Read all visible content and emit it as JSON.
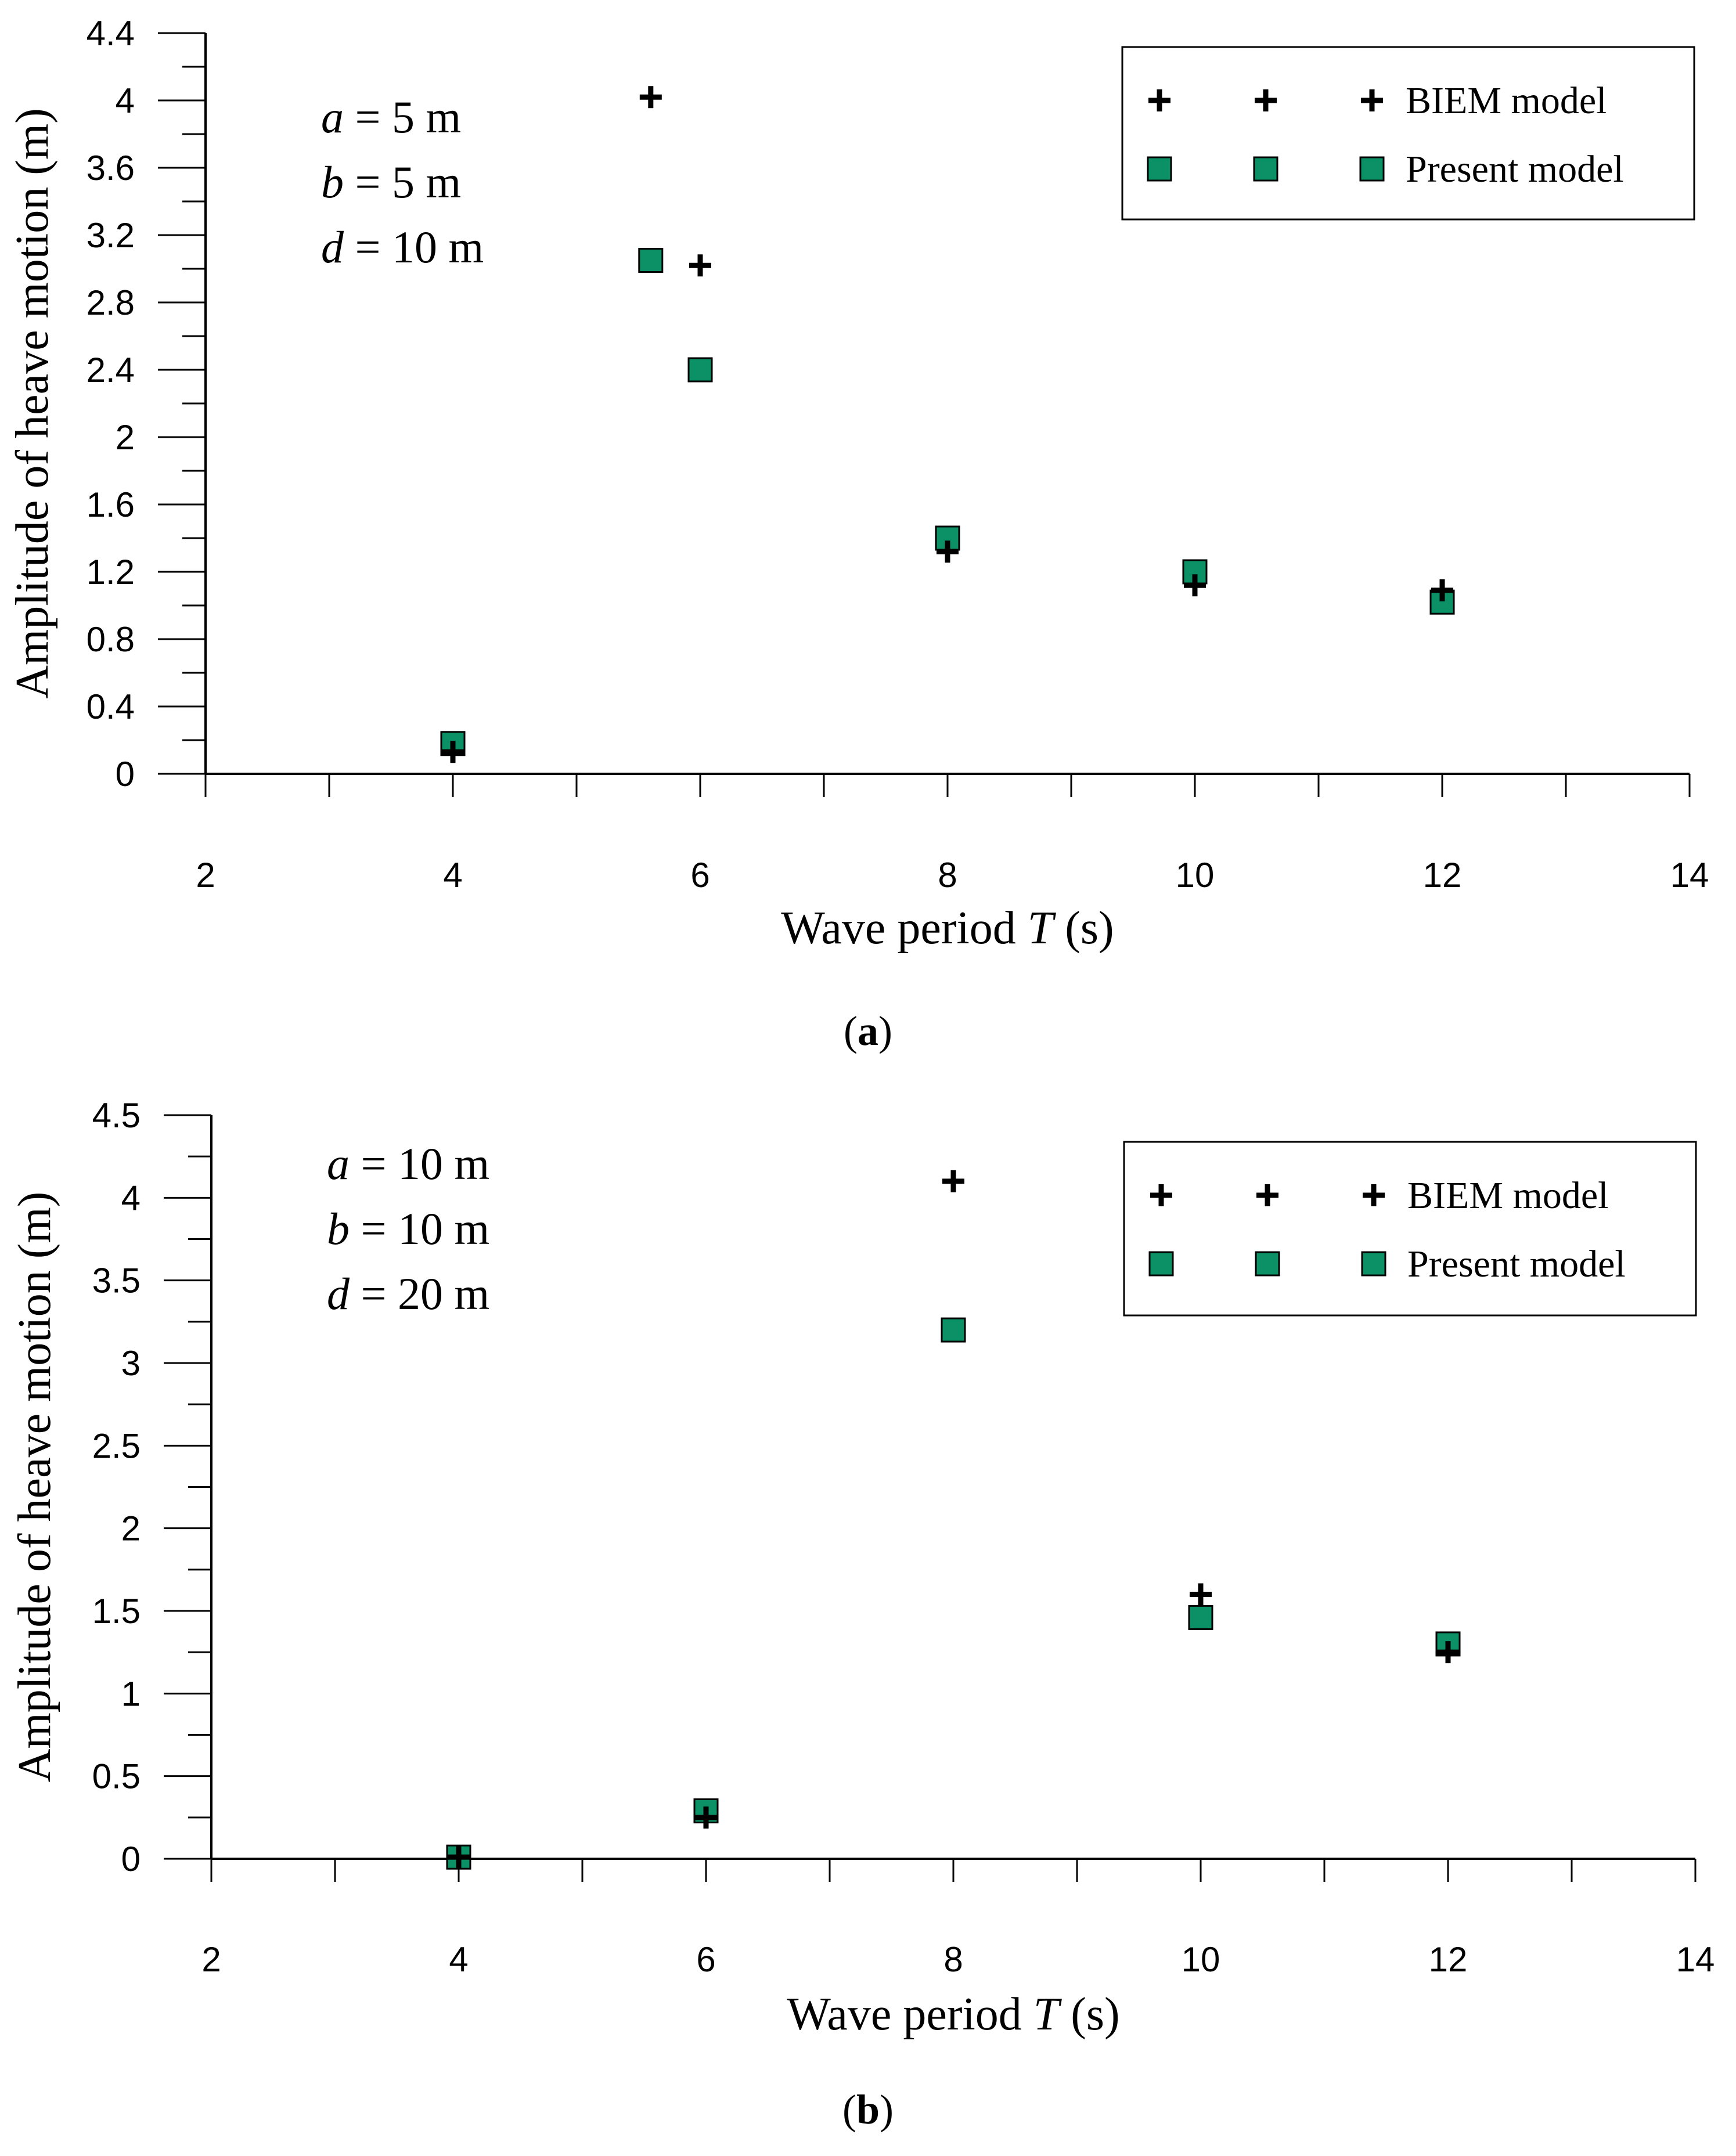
{
  "chart_data": [
    {
      "type": "scatter",
      "caption": "a",
      "xlabel": "Wave period",
      "xlabel_var": "T",
      "xlabel_unit": "(s)",
      "ylabel": "Amplitude of heave motion (m)",
      "xlim": [
        2,
        14
      ],
      "ylim": [
        0,
        4.4
      ],
      "x_ticks": [
        2,
        4,
        6,
        8,
        10,
        12,
        14
      ],
      "x_minor_ticks": [
        3,
        5,
        7,
        9,
        11,
        13
      ],
      "y_ticks": [
        0,
        0.4,
        0.8,
        1.2,
        1.6,
        2,
        2.4,
        2.8,
        3.2,
        3.6,
        4,
        4.4
      ],
      "y_minor_ticks": [
        0.2,
        0.6,
        1.0,
        1.4,
        1.8,
        2.2,
        2.6,
        3.0,
        3.4,
        3.8,
        4.2
      ],
      "params": [
        {
          "var": "a",
          "eq": " = 5 m"
        },
        {
          "var": "b",
          "eq": " = 5 m"
        },
        {
          "var": "d",
          "eq": " = 10 m"
        }
      ],
      "series": [
        {
          "name": "BIEM model",
          "marker": "plus",
          "color": "#000000",
          "x": [
            4,
            5.6,
            6,
            8,
            10,
            12
          ],
          "y": [
            0.13,
            4.02,
            3.02,
            1.32,
            1.12,
            1.09
          ]
        },
        {
          "name": "Present model",
          "marker": "square",
          "color": "#0b9165",
          "x": [
            4,
            5.6,
            6,
            8,
            10,
            12
          ],
          "y": [
            0.18,
            3.05,
            2.4,
            1.4,
            1.2,
            1.02
          ]
        }
      ]
    },
    {
      "type": "scatter",
      "caption": "b",
      "xlabel": "Wave period",
      "xlabel_var": "T",
      "xlabel_unit": "(s)",
      "ylabel": "Amplitude of heave motion (m)",
      "xlim": [
        2,
        14
      ],
      "ylim": [
        0,
        4.5
      ],
      "x_ticks": [
        2,
        4,
        6,
        8,
        10,
        12,
        14
      ],
      "x_minor_ticks": [
        3,
        5,
        7,
        9,
        11,
        13
      ],
      "y_ticks": [
        0,
        0.5,
        1,
        1.5,
        2,
        2.5,
        3,
        3.5,
        4,
        4.5
      ],
      "y_minor_ticks": [
        0.25,
        0.75,
        1.25,
        1.75,
        2.25,
        2.75,
        3.25,
        3.75,
        4.25
      ],
      "params": [
        {
          "var": "a",
          "eq": " = 10 m"
        },
        {
          "var": "b",
          "eq": " = 10 m"
        },
        {
          "var": "d",
          "eq": " = 20 m"
        }
      ],
      "series": [
        {
          "name": "BIEM model",
          "marker": "plus",
          "color": "#000000",
          "x": [
            4,
            6,
            8,
            10,
            12
          ],
          "y": [
            0.01,
            0.25,
            4.1,
            1.6,
            1.25
          ]
        },
        {
          "name": "Present model",
          "marker": "square",
          "color": "#0b9165",
          "x": [
            4,
            6,
            8,
            10,
            12
          ],
          "y": [
            0.01,
            0.29,
            3.2,
            1.46,
            1.3
          ]
        }
      ]
    }
  ]
}
